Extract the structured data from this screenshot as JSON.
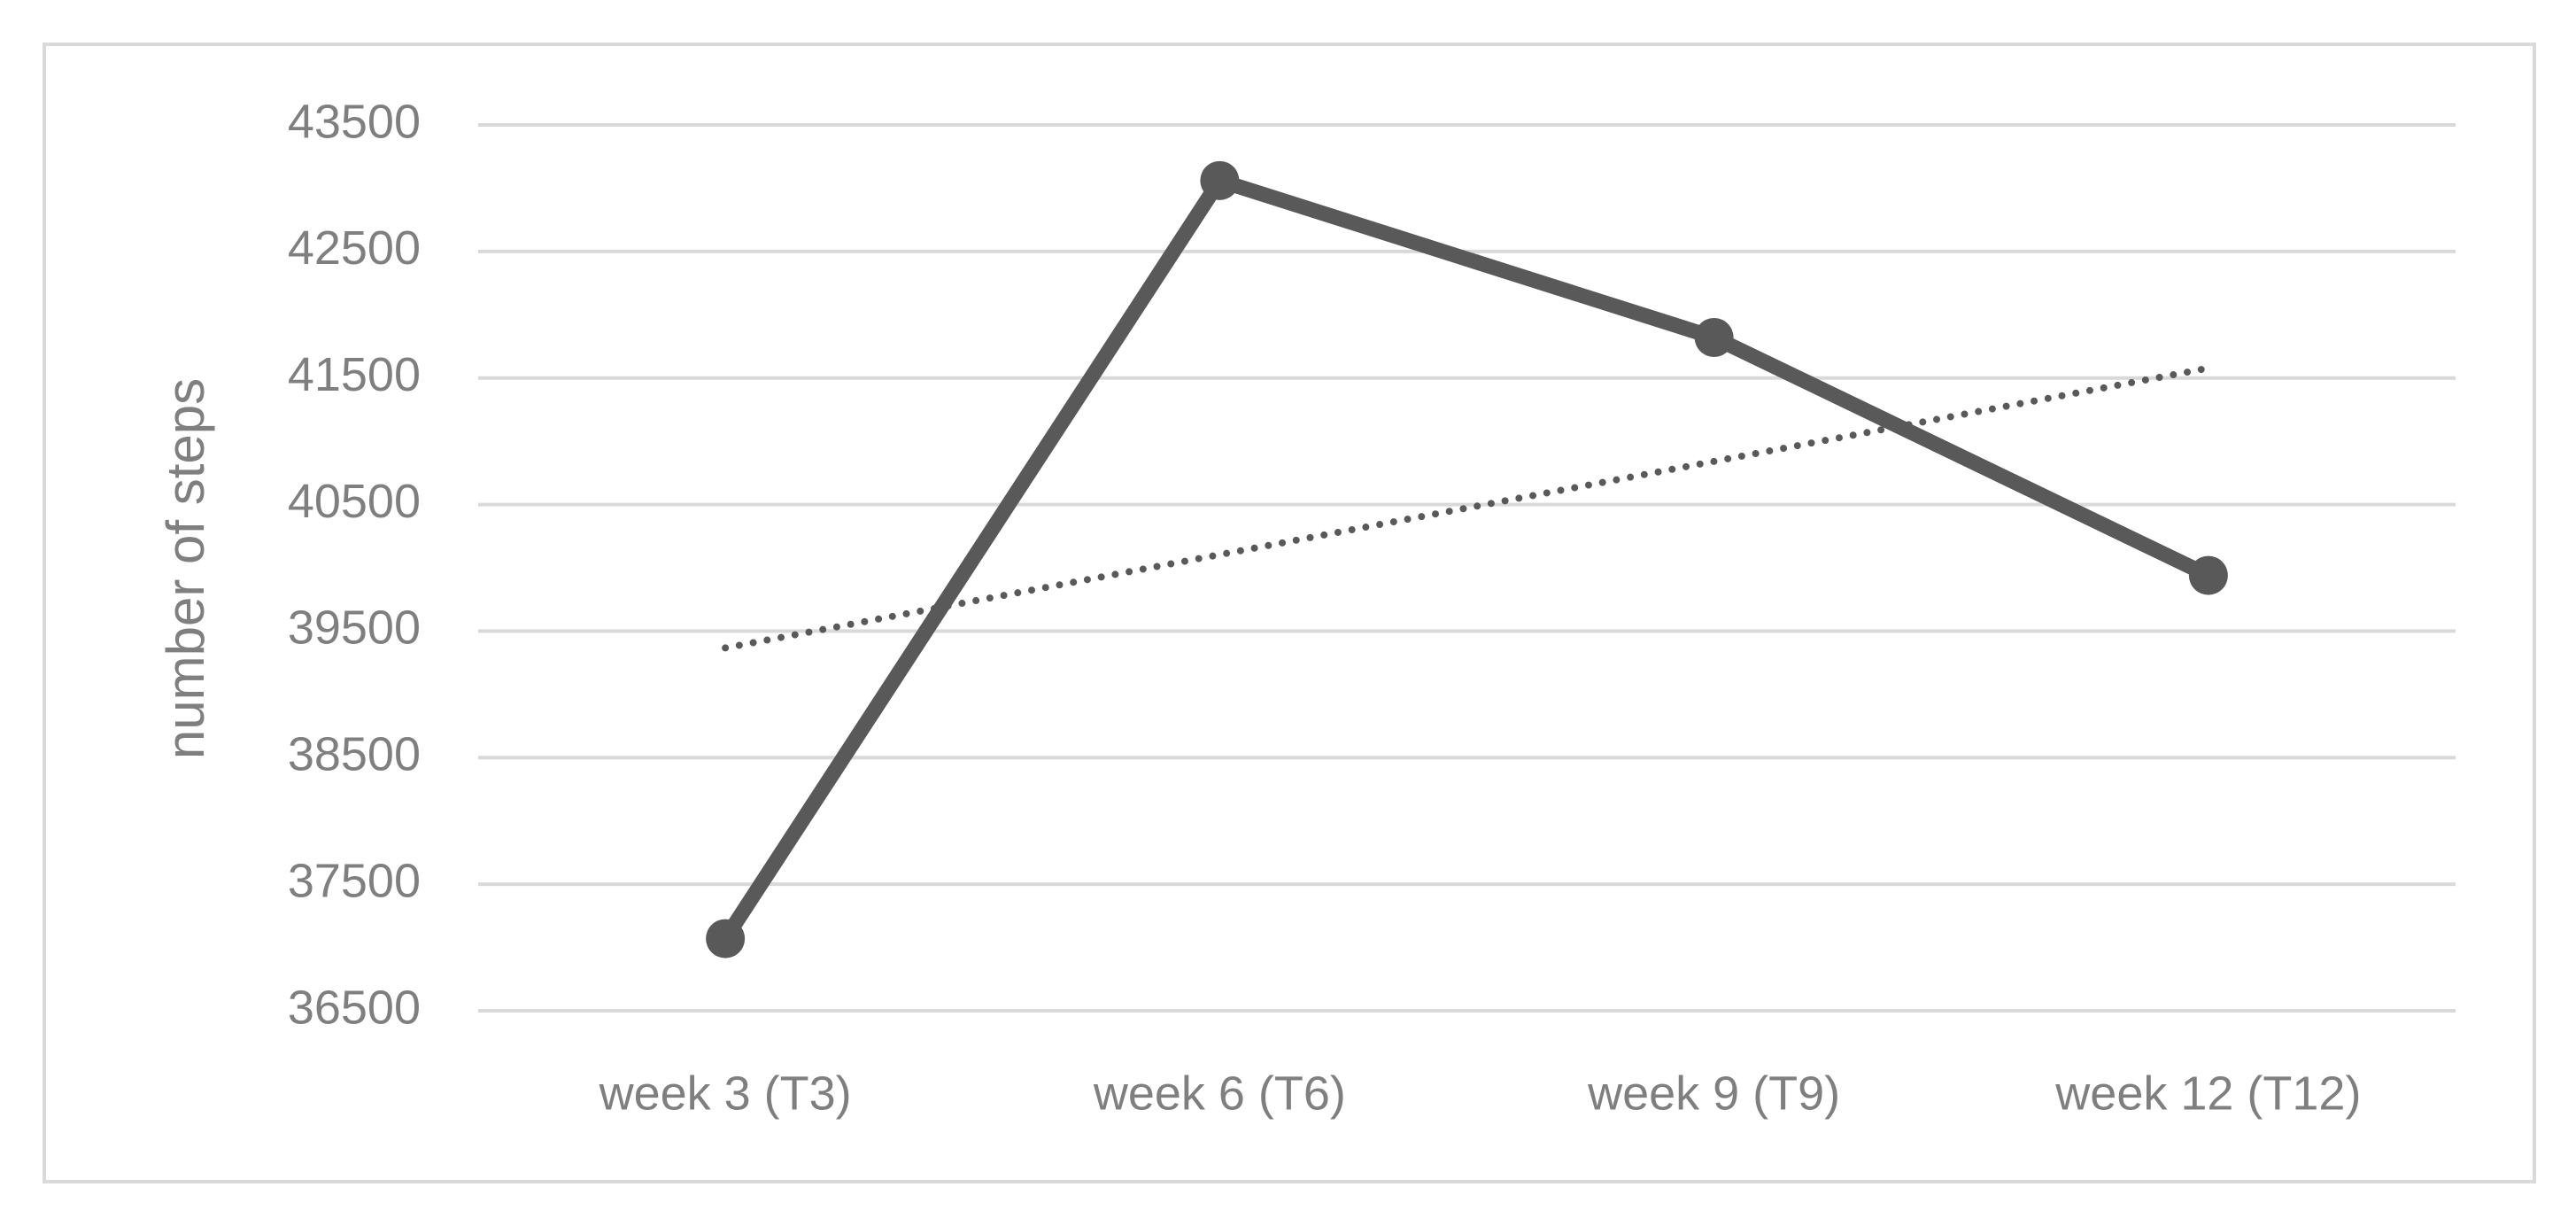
{
  "chart_data": {
    "type": "line",
    "y_label": "number of steps",
    "categories": [
      "week 3 (T3)",
      "week 6 (T6)",
      "week 9 (T9)",
      "week 12 (T12)"
    ],
    "series": [
      {
        "color": "#595959",
        "values": [
          37070,
          43060,
          41820,
          39940
        ]
      }
    ],
    "trendline": "linear",
    "ylim": [
      36500,
      43500
    ],
    "yticks": [
      36500,
      37500,
      38500,
      39500,
      40500,
      41500,
      42500,
      43500
    ],
    "grid": true
  }
}
